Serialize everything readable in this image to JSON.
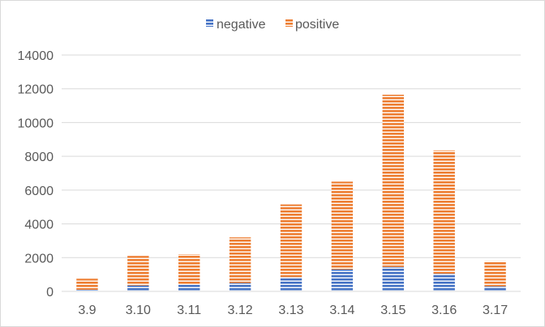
{
  "chart_data": {
    "type": "bar",
    "stacked": true,
    "title": "",
    "xlabel": "",
    "ylabel": "",
    "categories": [
      "3.9",
      "3.10",
      "3.11",
      "3.12",
      "3.13",
      "3.14",
      "3.15",
      "3.16",
      "3.17"
    ],
    "series": [
      {
        "name": "negative",
        "color": "#4472c4",
        "values": [
          100,
          350,
          420,
          500,
          850,
          1300,
          1450,
          1050,
          300
        ]
      },
      {
        "name": "positive",
        "color": "#ed7d31",
        "values": [
          650,
          1750,
          1780,
          2700,
          4300,
          5200,
          10200,
          7300,
          1500
        ]
      }
    ],
    "ylim": [
      0,
      14000
    ],
    "yticks": [
      0,
      2000,
      4000,
      6000,
      8000,
      10000,
      12000,
      14000
    ],
    "grid": true,
    "legend_position": "top-center",
    "bar_fill": "horizontal-stripes"
  }
}
